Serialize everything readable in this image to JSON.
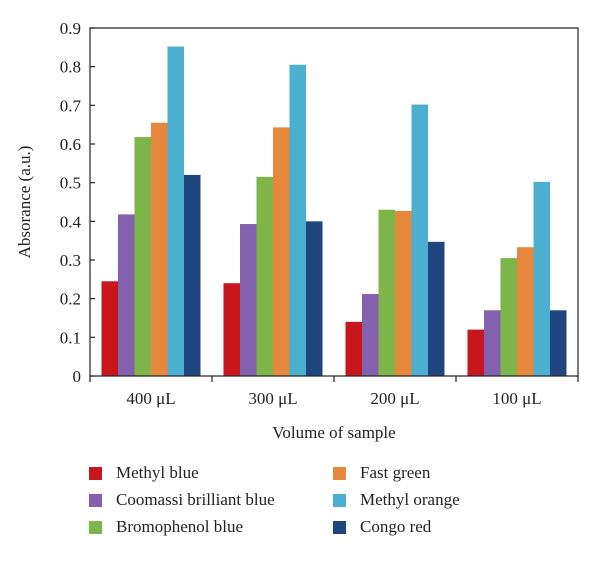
{
  "chart_data": {
    "type": "bar",
    "title": "",
    "xlabel": "Volume of sample",
    "ylabel": "Absorance (a.u.)",
    "ylim": [
      0,
      0.9
    ],
    "yticks": [
      "0",
      "0.1",
      "0.2",
      "0.3",
      "0.4",
      "0.5",
      "0.6",
      "0.7",
      "0.8",
      "0.9"
    ],
    "categories": [
      "400 μL",
      "300 μL",
      "200 μL",
      "100 μL"
    ],
    "grid": false,
    "legend_position": "bottom",
    "series": [
      {
        "name": "Methyl blue",
        "color": "#c8161d",
        "values": [
          0.245,
          0.24,
          0.14,
          0.12
        ]
      },
      {
        "name": "Coomassi brilliant blue",
        "color": "#8461ae",
        "values": [
          0.418,
          0.393,
          0.212,
          0.17
        ]
      },
      {
        "name": "Bromophenol blue",
        "color": "#7db548",
        "values": [
          0.618,
          0.515,
          0.43,
          0.305
        ]
      },
      {
        "name": "Fast green",
        "color": "#e6883b",
        "values": [
          0.655,
          0.643,
          0.427,
          0.333
        ]
      },
      {
        "name": "Methyl orange",
        "color": "#4bb0cf",
        "values": [
          0.852,
          0.805,
          0.702,
          0.502
        ]
      },
      {
        "name": "Congo red",
        "color": "#1f467f",
        "values": [
          0.52,
          0.4,
          0.347,
          0.17
        ]
      }
    ]
  }
}
